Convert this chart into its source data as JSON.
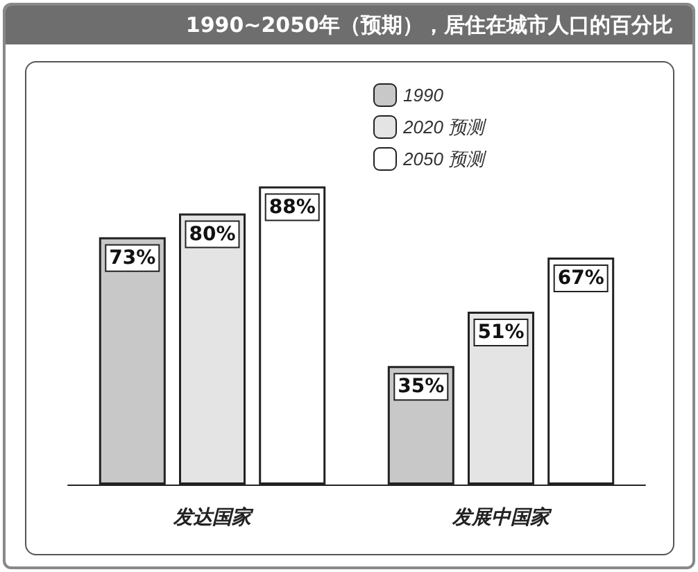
{
  "chart_data": {
    "type": "bar",
    "title": "1990~2050年（预期），居住在城市人口的百分比",
    "categories": [
      "发达国家",
      "发展中国家"
    ],
    "series": [
      {
        "name": "1990",
        "color": "#c8c8c8",
        "values": [
          73,
          35
        ],
        "value_labels": [
          "73%",
          "35%"
        ]
      },
      {
        "name": "2020 预测",
        "color": "#e4e4e4",
        "values": [
          80,
          51
        ],
        "value_labels": [
          "80%",
          "51%"
        ]
      },
      {
        "name": "2050 预测",
        "color": "#ffffff",
        "values": [
          88,
          67
        ],
        "value_labels": [
          "88%",
          "67%"
        ]
      }
    ],
    "legend": "top right"
  }
}
